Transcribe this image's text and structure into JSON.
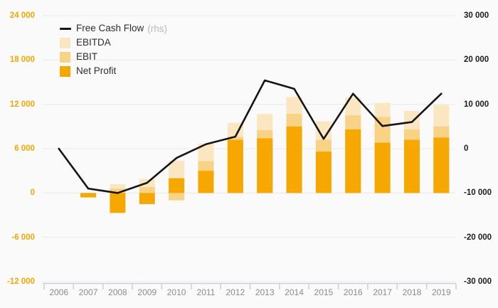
{
  "page": {
    "background": "#fafafa"
  },
  "chart_data": {
    "type": "bar",
    "subtype": "overlapped bars with line on secondary axis",
    "categories": [
      "2006",
      "2007",
      "2008",
      "2009",
      "2010",
      "2011",
      "2012",
      "2013",
      "2014",
      "2015",
      "2016",
      "2017",
      "2018",
      "2019"
    ],
    "series": [
      {
        "name": "EBITDA",
        "type": "bar",
        "axis": "left",
        "color": "#fae6c0",
        "values": [
          0,
          0,
          1200,
          1900,
          4400,
          6700,
          9500,
          10700,
          13000,
          9700,
          12900,
          12200,
          11100,
          11900
        ]
      },
      {
        "name": "EBIT",
        "type": "bar",
        "axis": "left",
        "color": "#f8d285",
        "values": [
          0,
          0,
          600,
          800,
          -1000,
          4300,
          7600,
          8500,
          10700,
          7200,
          10500,
          10300,
          8600,
          9000
        ]
      },
      {
        "name": "Net Profit",
        "type": "bar",
        "axis": "left",
        "color": "#f6a800",
        "values": [
          0,
          -600,
          -2700,
          -1500,
          2000,
          3000,
          7200,
          7400,
          9000,
          5600,
          8600,
          6800,
          7200,
          7500
        ]
      },
      {
        "name": "Free Cash Flow",
        "type": "line",
        "axis": "right",
        "color": "#151515",
        "values": [
          0,
          -9000,
          -10000,
          -7700,
          -2100,
          1000,
          2700,
          15400,
          13500,
          2200,
          12400,
          5100,
          6000,
          12400
        ]
      }
    ],
    "left_axis": {
      "ylim": [
        -12000,
        24000
      ],
      "tick_values": [
        24000,
        18000,
        12000,
        6000,
        0,
        -6000,
        -12000
      ],
      "tick_labels": [
        "24 000",
        "18 000",
        "12 000",
        "6 000",
        "0",
        "-6 000",
        "-12 000"
      ],
      "label_color": "#f5a700"
    },
    "right_axis": {
      "ylim": [
        -30000,
        30000
      ],
      "tick_values": [
        30000,
        20000,
        10000,
        0,
        -10000,
        -20000,
        -30000
      ],
      "tick_labels": [
        "30 000",
        "20 000",
        "10 000",
        "0",
        "-10 000",
        "-20 000",
        "-30 000"
      ],
      "label_color": "#1c1c1c"
    },
    "legend": {
      "position": "top-left",
      "rhs_suffix": "(rhs)",
      "rhs_suffix_color": "#b8b8b8"
    },
    "grid": true,
    "gridline_color": "#e9e9e9",
    "x_axis_line_color": "#c9cfdc",
    "year_label_color": "#8b8b8b",
    "title": "",
    "xlabel": "",
    "ylabel": ""
  }
}
